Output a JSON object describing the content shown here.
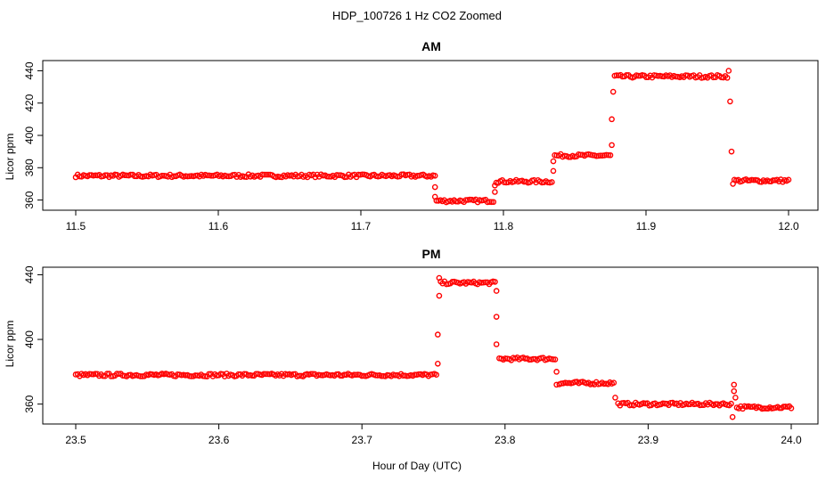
{
  "main_title": "HDP_100726  1 Hz CO2 Zoomed",
  "x_axis_label": "Hour of Day (UTC)",
  "point_color": "#ff0000",
  "chart_data": [
    {
      "type": "scatter",
      "title": "AM",
      "xlabel": "",
      "ylabel": "Licor ppm",
      "xlim": [
        11.5,
        12.0
      ],
      "ylim": [
        357,
        443
      ],
      "xticks": [
        "11.5",
        "11.6",
        "11.7",
        "11.8",
        "11.9",
        "12.0"
      ],
      "yticks": [
        "360",
        "380",
        "400",
        "420",
        "440"
      ],
      "grid": false,
      "segments": [
        {
          "x": [
            11.5,
            11.752
          ],
          "y": 375
        },
        {
          "x": [
            11.753,
            11.793
          ],
          "y": 359.5
        },
        {
          "x": [
            11.795,
            11.834
          ],
          "y": 371.5
        },
        {
          "x": [
            11.836,
            11.875
          ],
          "y": 387.5
        },
        {
          "x": [
            11.878,
            11.957
          ],
          "y": 436.5
        },
        {
          "x": [
            11.962,
            12.0
          ],
          "y": 372
        }
      ],
      "transitions": [
        {
          "x": 11.752,
          "y": 368
        },
        {
          "x": 11.752,
          "y": 362
        },
        {
          "x": 11.794,
          "y": 365
        },
        {
          "x": 11.794,
          "y": 369
        },
        {
          "x": 11.835,
          "y": 378
        },
        {
          "x": 11.835,
          "y": 384
        },
        {
          "x": 11.876,
          "y": 394
        },
        {
          "x": 11.876,
          "y": 410
        },
        {
          "x": 11.877,
          "y": 427
        },
        {
          "x": 11.958,
          "y": 440
        },
        {
          "x": 11.959,
          "y": 421
        },
        {
          "x": 11.96,
          "y": 390
        },
        {
          "x": 11.961,
          "y": 370
        }
      ]
    },
    {
      "type": "scatter",
      "title": "PM",
      "xlabel": "Hour of Day (UTC)",
      "ylabel": "Licor ppm",
      "xlim": [
        23.5,
        24.0
      ],
      "ylim": [
        351,
        443
      ],
      "xticks": [
        "23.5",
        "23.6",
        "23.7",
        "23.8",
        "23.9",
        "24.0"
      ],
      "yticks": [
        "360",
        "400",
        "440"
      ],
      "grid": false,
      "segments": [
        {
          "x": [
            23.5,
            23.752
          ],
          "y": 378
        },
        {
          "x": [
            23.755,
            23.793
          ],
          "y": 435
        },
        {
          "x": [
            23.796,
            23.835
          ],
          "y": 388
        },
        {
          "x": [
            23.838,
            23.876
          ],
          "y": 373
        },
        {
          "x": [
            23.879,
            23.958
          ],
          "y": 360
        },
        {
          "x": [
            23.962,
            24.0
          ],
          "y": 358
        }
      ],
      "transitions": [
        {
          "x": 23.753,
          "y": 385
        },
        {
          "x": 23.753,
          "y": 403
        },
        {
          "x": 23.754,
          "y": 427
        },
        {
          "x": 23.754,
          "y": 438
        },
        {
          "x": 23.794,
          "y": 430
        },
        {
          "x": 23.794,
          "y": 414
        },
        {
          "x": 23.794,
          "y": 397
        },
        {
          "x": 23.836,
          "y": 380
        },
        {
          "x": 23.836,
          "y": 372
        },
        {
          "x": 23.877,
          "y": 364
        },
        {
          "x": 23.959,
          "y": 352
        },
        {
          "x": 23.96,
          "y": 372
        },
        {
          "x": 23.96,
          "y": 368
        },
        {
          "x": 23.961,
          "y": 364
        }
      ]
    }
  ]
}
